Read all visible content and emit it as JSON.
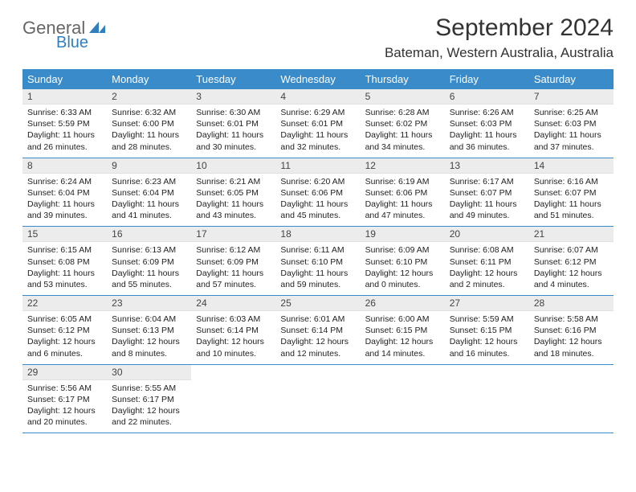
{
  "brand": {
    "name": "General",
    "sub": "Blue"
  },
  "title": "September 2024",
  "location": "Bateman, Western Australia, Australia",
  "colors": {
    "header_bg": "#3a8bc9",
    "daynum_bg": "#ececec",
    "rule": "#3a8bc9"
  },
  "day_names": [
    "Sunday",
    "Monday",
    "Tuesday",
    "Wednesday",
    "Thursday",
    "Friday",
    "Saturday"
  ],
  "weeks": [
    [
      {
        "n": "1",
        "sunrise": "6:33 AM",
        "sunset": "5:59 PM",
        "day_h": "11",
        "day_m": "26"
      },
      {
        "n": "2",
        "sunrise": "6:32 AM",
        "sunset": "6:00 PM",
        "day_h": "11",
        "day_m": "28"
      },
      {
        "n": "3",
        "sunrise": "6:30 AM",
        "sunset": "6:01 PM",
        "day_h": "11",
        "day_m": "30"
      },
      {
        "n": "4",
        "sunrise": "6:29 AM",
        "sunset": "6:01 PM",
        "day_h": "11",
        "day_m": "32"
      },
      {
        "n": "5",
        "sunrise": "6:28 AM",
        "sunset": "6:02 PM",
        "day_h": "11",
        "day_m": "34"
      },
      {
        "n": "6",
        "sunrise": "6:26 AM",
        "sunset": "6:03 PM",
        "day_h": "11",
        "day_m": "36"
      },
      {
        "n": "7",
        "sunrise": "6:25 AM",
        "sunset": "6:03 PM",
        "day_h": "11",
        "day_m": "37"
      }
    ],
    [
      {
        "n": "8",
        "sunrise": "6:24 AM",
        "sunset": "6:04 PM",
        "day_h": "11",
        "day_m": "39"
      },
      {
        "n": "9",
        "sunrise": "6:23 AM",
        "sunset": "6:04 PM",
        "day_h": "11",
        "day_m": "41"
      },
      {
        "n": "10",
        "sunrise": "6:21 AM",
        "sunset": "6:05 PM",
        "day_h": "11",
        "day_m": "43"
      },
      {
        "n": "11",
        "sunrise": "6:20 AM",
        "sunset": "6:06 PM",
        "day_h": "11",
        "day_m": "45"
      },
      {
        "n": "12",
        "sunrise": "6:19 AM",
        "sunset": "6:06 PM",
        "day_h": "11",
        "day_m": "47"
      },
      {
        "n": "13",
        "sunrise": "6:17 AM",
        "sunset": "6:07 PM",
        "day_h": "11",
        "day_m": "49"
      },
      {
        "n": "14",
        "sunrise": "6:16 AM",
        "sunset": "6:07 PM",
        "day_h": "11",
        "day_m": "51"
      }
    ],
    [
      {
        "n": "15",
        "sunrise": "6:15 AM",
        "sunset": "6:08 PM",
        "day_h": "11",
        "day_m": "53"
      },
      {
        "n": "16",
        "sunrise": "6:13 AM",
        "sunset": "6:09 PM",
        "day_h": "11",
        "day_m": "55"
      },
      {
        "n": "17",
        "sunrise": "6:12 AM",
        "sunset": "6:09 PM",
        "day_h": "11",
        "day_m": "57"
      },
      {
        "n": "18",
        "sunrise": "6:11 AM",
        "sunset": "6:10 PM",
        "day_h": "11",
        "day_m": "59"
      },
      {
        "n": "19",
        "sunrise": "6:09 AM",
        "sunset": "6:10 PM",
        "day_h": "12",
        "day_m": "0"
      },
      {
        "n": "20",
        "sunrise": "6:08 AM",
        "sunset": "6:11 PM",
        "day_h": "12",
        "day_m": "2"
      },
      {
        "n": "21",
        "sunrise": "6:07 AM",
        "sunset": "6:12 PM",
        "day_h": "12",
        "day_m": "4"
      }
    ],
    [
      {
        "n": "22",
        "sunrise": "6:05 AM",
        "sunset": "6:12 PM",
        "day_h": "12",
        "day_m": "6"
      },
      {
        "n": "23",
        "sunrise": "6:04 AM",
        "sunset": "6:13 PM",
        "day_h": "12",
        "day_m": "8"
      },
      {
        "n": "24",
        "sunrise": "6:03 AM",
        "sunset": "6:14 PM",
        "day_h": "12",
        "day_m": "10"
      },
      {
        "n": "25",
        "sunrise": "6:01 AM",
        "sunset": "6:14 PM",
        "day_h": "12",
        "day_m": "12"
      },
      {
        "n": "26",
        "sunrise": "6:00 AM",
        "sunset": "6:15 PM",
        "day_h": "12",
        "day_m": "14"
      },
      {
        "n": "27",
        "sunrise": "5:59 AM",
        "sunset": "6:15 PM",
        "day_h": "12",
        "day_m": "16"
      },
      {
        "n": "28",
        "sunrise": "5:58 AM",
        "sunset": "6:16 PM",
        "day_h": "12",
        "day_m": "18"
      }
    ],
    [
      {
        "n": "29",
        "sunrise": "5:56 AM",
        "sunset": "6:17 PM",
        "day_h": "12",
        "day_m": "20"
      },
      {
        "n": "30",
        "sunrise": "5:55 AM",
        "sunset": "6:17 PM",
        "day_h": "12",
        "day_m": "22"
      },
      null,
      null,
      null,
      null,
      null
    ]
  ],
  "labels": {
    "sunrise_prefix": "Sunrise: ",
    "sunset_prefix": "Sunset: ",
    "daylight_prefix": "Daylight: ",
    "hours_word": " hours",
    "and_word": "and ",
    "minutes_word": " minutes."
  }
}
